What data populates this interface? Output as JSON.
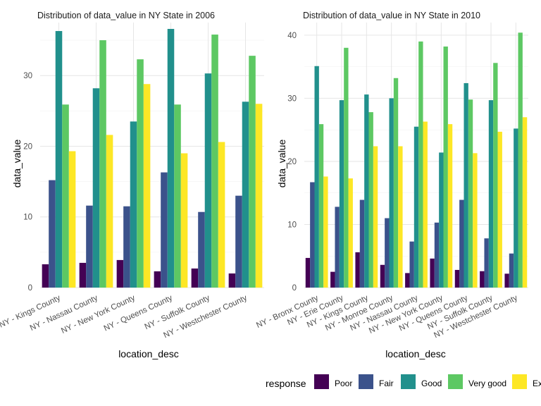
{
  "legend": {
    "title": "response",
    "items": [
      {
        "label": "Poor",
        "color": "#440154"
      },
      {
        "label": "Fair",
        "color": "#3B528B"
      },
      {
        "label": "Good",
        "color": "#21908C"
      },
      {
        "label": "Very good",
        "color": "#5DC863"
      },
      {
        "label": "Excellent",
        "color": "#FDE725"
      }
    ]
  },
  "chart_data": [
    {
      "type": "bar",
      "title": "Distribution of data_value in NY State in 2006",
      "xlabel": "location_desc",
      "ylabel": "data_value",
      "ylim": [
        0,
        37.5
      ],
      "yticks": [
        0,
        10,
        20,
        30
      ],
      "grid": true,
      "categories": [
        "NY - Kings County",
        "NY - Nassau County",
        "NY - New York County",
        "NY - Queens County",
        "NY - Suffolk County",
        "NY - Westchester County"
      ],
      "series": [
        {
          "name": "Poor",
          "values": [
            3.3,
            3.5,
            3.9,
            2.3,
            2.7,
            2.0
          ]
        },
        {
          "name": "Fair",
          "values": [
            15.2,
            11.6,
            11.5,
            16.3,
            10.7,
            13.0
          ]
        },
        {
          "name": "Good",
          "values": [
            36.3,
            28.2,
            23.5,
            36.6,
            30.3,
            26.3
          ]
        },
        {
          "name": "Very good",
          "values": [
            25.9,
            35.0,
            32.3,
            25.9,
            35.8,
            32.8
          ]
        },
        {
          "name": "Excellent",
          "values": [
            19.3,
            21.6,
            28.8,
            19.0,
            20.6,
            26.0
          ]
        }
      ]
    },
    {
      "type": "bar",
      "title": "Distribution of data_value in NY State in 2010",
      "xlabel": "location_desc",
      "ylabel": "data_value",
      "ylim": [
        0,
        42
      ],
      "yticks": [
        0,
        10,
        20,
        30,
        40
      ],
      "grid": true,
      "categories": [
        "NY - Bronx County",
        "NY - Erie County",
        "NY - Kings County",
        "NY - Monroe County",
        "NY - Nassau County",
        "NY - New York County",
        "NY - Queens County",
        "NY - Suffolk County",
        "NY - Westchester County"
      ],
      "series": [
        {
          "name": "Poor",
          "values": [
            4.7,
            2.5,
            5.6,
            3.6,
            2.3,
            4.6,
            2.8,
            2.6,
            2.2
          ]
        },
        {
          "name": "Fair",
          "values": [
            16.7,
            12.8,
            13.9,
            11.0,
            7.3,
            10.3,
            13.9,
            7.8,
            5.4
          ]
        },
        {
          "name": "Good",
          "values": [
            35.1,
            29.7,
            30.6,
            30.0,
            25.5,
            21.4,
            32.4,
            29.7,
            25.2
          ]
        },
        {
          "name": "Very good",
          "values": [
            25.9,
            38.0,
            27.8,
            33.2,
            39.0,
            38.2,
            29.8,
            35.6,
            40.4
          ]
        },
        {
          "name": "Excellent",
          "values": [
            17.6,
            17.3,
            22.4,
            22.4,
            26.3,
            25.9,
            21.3,
            24.7,
            27.0
          ]
        }
      ]
    }
  ]
}
